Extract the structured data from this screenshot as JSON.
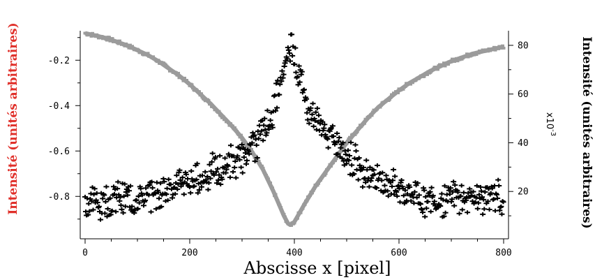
{
  "chart_data": {
    "type": "scatter",
    "xlabel": "Abscisse x [pixel]",
    "ylabel_left": "Intensité (unités arbitraires)",
    "ylabel_right": "Intensité (unités arbitraires)",
    "right_axis_multiplier": "x10",
    "right_axis_multiplier_exp": "-3",
    "xlim": [
      0,
      800
    ],
    "ylim_left": [
      -0.95,
      -0.07
    ],
    "ylim_right": [
      4,
      86
    ],
    "x_ticks": [
      "0",
      "200",
      "400",
      "600",
      "800"
    ],
    "y_left_ticks": [
      "-0.2",
      "-0.4",
      "-0.6",
      "-0.8"
    ],
    "y_right_ticks": [
      "80",
      "60",
      "40",
      "20"
    ],
    "grid": false,
    "colors": {
      "left_axis_label": "#e0302a",
      "series_black": "#000000",
      "series_gray": "#9b9b9b"
    },
    "series": [
      {
        "axis": "left",
        "marker": "cross",
        "x": [
          0,
          10,
          20,
          30,
          40,
          50,
          60,
          70,
          80,
          90,
          100,
          110,
          120,
          130,
          140,
          150,
          160,
          170,
          180,
          190,
          200,
          210,
          220,
          230,
          240,
          250,
          260,
          270,
          280,
          290,
          300,
          310,
          320,
          330,
          340,
          350,
          360,
          370,
          380,
          390,
          395,
          400,
          410,
          420,
          430,
          440,
          450,
          460,
          470,
          480,
          490,
          500,
          510,
          520,
          530,
          540,
          550,
          560,
          570,
          580,
          590,
          600,
          610,
          620,
          630,
          640,
          650,
          660,
          670,
          680,
          690,
          700,
          710,
          720,
          730,
          740,
          750,
          760,
          770,
          780,
          790,
          800
        ],
        "y": [
          -0.82,
          -0.83,
          -0.81,
          -0.84,
          -0.8,
          -0.83,
          -0.79,
          -0.82,
          -0.8,
          -0.83,
          -0.79,
          -0.8,
          -0.81,
          -0.78,
          -0.8,
          -0.76,
          -0.75,
          -0.77,
          -0.74,
          -0.73,
          -0.76,
          -0.72,
          -0.73,
          -0.71,
          -0.69,
          -0.68,
          -0.7,
          -0.66,
          -0.64,
          -0.66,
          -0.62,
          -0.6,
          -0.57,
          -0.56,
          -0.5,
          -0.48,
          -0.42,
          -0.34,
          -0.25,
          -0.15,
          -0.11,
          -0.17,
          -0.27,
          -0.38,
          -0.42,
          -0.46,
          -0.5,
          -0.52,
          -0.54,
          -0.56,
          -0.58,
          -0.61,
          -0.64,
          -0.66,
          -0.68,
          -0.7,
          -0.71,
          -0.72,
          -0.73,
          -0.74,
          -0.75,
          -0.76,
          -0.78,
          -0.79,
          -0.78,
          -0.81,
          -0.82,
          -0.8,
          -0.83,
          -0.81,
          -0.82,
          -0.79,
          -0.81,
          -0.8,
          -0.82,
          -0.79,
          -0.8,
          -0.81,
          -0.79,
          -0.82,
          -0.8,
          -0.83
        ]
      },
      {
        "axis": "right",
        "marker": "line",
        "x": [
          0,
          20,
          40,
          60,
          80,
          100,
          120,
          140,
          160,
          180,
          200,
          220,
          240,
          260,
          280,
          300,
          320,
          340,
          360,
          380,
          390,
          400,
          420,
          440,
          460,
          480,
          500,
          520,
          540,
          560,
          580,
          600,
          620,
          640,
          660,
          680,
          700,
          720,
          740,
          760,
          780,
          800
        ],
        "y": [
          85,
          84,
          83,
          81.5,
          80,
          78,
          76,
          73.5,
          70.5,
          67.5,
          64,
          60,
          56,
          51.5,
          47,
          42,
          36,
          29,
          20,
          10,
          6,
          7.5,
          15,
          22,
          28,
          34,
          40,
          45,
          50,
          54.5,
          58,
          61.5,
          64.5,
          67,
          69.5,
          71.5,
          73.5,
          75,
          76.5,
          77.5,
          78.5,
          79.5
        ]
      }
    ]
  }
}
